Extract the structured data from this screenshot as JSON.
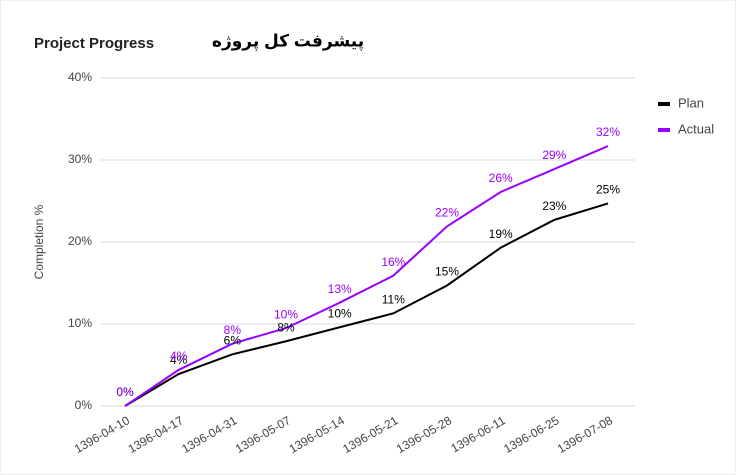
{
  "chart_data": {
    "type": "line",
    "title": "Project Progress",
    "annotation": "پیشرفت کل پروژه",
    "ylabel": "Completion %",
    "categories": [
      "1396-04-10",
      "1396-04-17",
      "1396-04-31",
      "1396-05-07",
      "1396-05-14",
      "1396-05-21",
      "1396-05-28",
      "1396-06-11",
      "1396-06-25",
      "1396-07-08"
    ],
    "series": [
      {
        "name": "Plan",
        "color": "#000000",
        "values": [
          0,
          3.9,
          6.3,
          7.9,
          9.6,
          11.3,
          14.7,
          19.3,
          22.7,
          24.7
        ],
        "value_labels": [
          "0%",
          "4%",
          "6%",
          "8%",
          "10%",
          "11%",
          "15%",
          "19%",
          "23%",
          "25%"
        ]
      },
      {
        "name": "Actual",
        "color": "#9900ff",
        "values": [
          0,
          4.4,
          7.6,
          9.5,
          12.6,
          15.9,
          21.9,
          26.1,
          28.9,
          31.7
        ],
        "value_labels": [
          "0%",
          "4%",
          "8%",
          "10%",
          "13%",
          "16%",
          "22%",
          "26%",
          "29%",
          "32%"
        ]
      }
    ],
    "ylim": [
      0,
      40
    ],
    "yticks": [
      {
        "value": 0,
        "label": "0%"
      },
      {
        "value": 10,
        "label": "10%"
      },
      {
        "value": 20,
        "label": "20%"
      },
      {
        "value": 30,
        "label": "30%"
      },
      {
        "value": 40,
        "label": "40%"
      }
    ],
    "grid": true,
    "legend": "right"
  }
}
